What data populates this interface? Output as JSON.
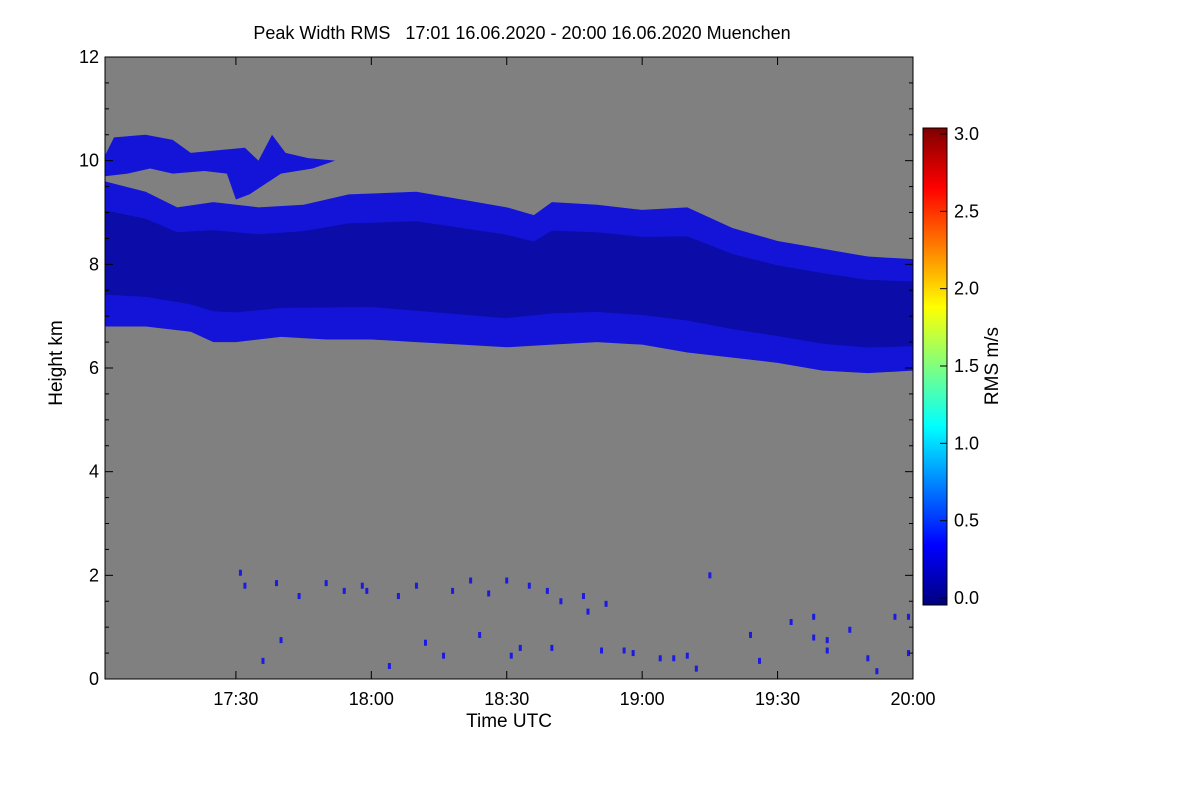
{
  "chart_data": {
    "type": "heatmap",
    "title": "Peak Width RMS   17:01 16.06.2020 - 20:00 16.06.2020 Muenchen",
    "xlabel": "Time UTC",
    "ylabel": "Height km",
    "x_range_minutes_utc": [
      1021,
      1200
    ],
    "xticks": [
      {
        "label": "17:30",
        "value": 1050
      },
      {
        "label": "18:00",
        "value": 1080
      },
      {
        "label": "18:30",
        "value": 1110
      },
      {
        "label": "19:00",
        "value": 1140
      },
      {
        "label": "19:30",
        "value": 1170
      },
      {
        "label": "20:00",
        "value": 1200
      }
    ],
    "ylim": [
      0,
      12
    ],
    "yticks": [
      "0",
      "2",
      "4",
      "6",
      "8",
      "10",
      "12"
    ],
    "background_color": "#808080",
    "colorbar": {
      "label": "RMS m/s",
      "range": [
        0.0,
        3.0
      ],
      "ticks": [
        "0.0",
        "0.5",
        "1.0",
        "1.5",
        "2.0",
        "2.5",
        "3.0"
      ],
      "colormap": "jet",
      "colors": [
        "#00007f",
        "#0000ff",
        "#007fff",
        "#00ffff",
        "#7fff7f",
        "#ffff00",
        "#ff7f00",
        "#ff0000",
        "#7f0000"
      ]
    },
    "layers": [
      {
        "name": "upper-cloud-band",
        "color": "#1414d8",
        "inner_color": "#0a0aa0",
        "top": [
          [
            1021,
            9.6
          ],
          [
            1030,
            9.4
          ],
          [
            1037,
            9.1
          ],
          [
            1045,
            9.2
          ],
          [
            1055,
            9.1
          ],
          [
            1065,
            9.15
          ],
          [
            1075,
            9.35
          ],
          [
            1090,
            9.4
          ],
          [
            1100,
            9.25
          ],
          [
            1110,
            9.1
          ],
          [
            1116,
            8.95
          ],
          [
            1120,
            9.2
          ],
          [
            1130,
            9.15
          ],
          [
            1140,
            9.05
          ],
          [
            1150,
            9.1
          ],
          [
            1160,
            8.7
          ],
          [
            1170,
            8.45
          ],
          [
            1180,
            8.3
          ],
          [
            1190,
            8.15
          ],
          [
            1200,
            8.1
          ]
        ],
        "bottom": [
          [
            1021,
            6.8
          ],
          [
            1030,
            6.8
          ],
          [
            1040,
            6.7
          ],
          [
            1045,
            6.5
          ],
          [
            1050,
            6.5
          ],
          [
            1060,
            6.6
          ],
          [
            1070,
            6.55
          ],
          [
            1080,
            6.55
          ],
          [
            1090,
            6.5
          ],
          [
            1100,
            6.45
          ],
          [
            1110,
            6.4
          ],
          [
            1120,
            6.45
          ],
          [
            1130,
            6.5
          ],
          [
            1140,
            6.45
          ],
          [
            1150,
            6.3
          ],
          [
            1160,
            6.2
          ],
          [
            1170,
            6.1
          ],
          [
            1180,
            5.95
          ],
          [
            1190,
            5.9
          ],
          [
            1200,
            5.95
          ]
        ]
      },
      {
        "name": "cirrus-tuft",
        "color": "#1414d8",
        "outline": [
          [
            1021,
            9.7
          ],
          [
            1021,
            10.1
          ],
          [
            1023,
            10.45
          ],
          [
            1030,
            10.5
          ],
          [
            1036,
            10.4
          ],
          [
            1040,
            10.15
          ],
          [
            1046,
            10.2
          ],
          [
            1052,
            10.25
          ],
          [
            1055,
            10.0
          ],
          [
            1058,
            10.5
          ],
          [
            1061,
            10.15
          ],
          [
            1066,
            10.05
          ],
          [
            1072,
            10.0
          ],
          [
            1067,
            9.85
          ],
          [
            1060,
            9.75
          ],
          [
            1053,
            9.35
          ],
          [
            1050,
            9.25
          ],
          [
            1048,
            9.75
          ],
          [
            1043,
            9.8
          ],
          [
            1036,
            9.75
          ],
          [
            1031,
            9.85
          ],
          [
            1026,
            9.75
          ]
        ]
      }
    ],
    "speckles": [
      {
        "x": 1051,
        "y": 2.05
      },
      {
        "x": 1052,
        "y": 1.8
      },
      {
        "x": 1059,
        "y": 1.85
      },
      {
        "x": 1064,
        "y": 1.6
      },
      {
        "x": 1070,
        "y": 1.85
      },
      {
        "x": 1074,
        "y": 1.7
      },
      {
        "x": 1078,
        "y": 1.8
      },
      {
        "x": 1079,
        "y": 1.7
      },
      {
        "x": 1086,
        "y": 1.6
      },
      {
        "x": 1090,
        "y": 1.8
      },
      {
        "x": 1110,
        "y": 1.9
      },
      {
        "x": 1115,
        "y": 1.8
      },
      {
        "x": 1119,
        "y": 1.7
      },
      {
        "x": 1127,
        "y": 1.6
      },
      {
        "x": 1120,
        "y": 0.6
      },
      {
        "x": 1113,
        "y": 0.6
      },
      {
        "x": 1111,
        "y": 0.45
      },
      {
        "x": 1131,
        "y": 0.55
      },
      {
        "x": 1136,
        "y": 0.55
      },
      {
        "x": 1147,
        "y": 0.4
      },
      {
        "x": 1150,
        "y": 0.45
      },
      {
        "x": 1152,
        "y": 0.2
      },
      {
        "x": 1164,
        "y": 0.85
      },
      {
        "x": 1173,
        "y": 1.1
      },
      {
        "x": 1178,
        "y": 1.2
      },
      {
        "x": 1178,
        "y": 0.8
      },
      {
        "x": 1181,
        "y": 0.75
      },
      {
        "x": 1186,
        "y": 0.95
      },
      {
        "x": 1190,
        "y": 0.4
      },
      {
        "x": 1192,
        "y": 0.15
      },
      {
        "x": 1196,
        "y": 1.2
      },
      {
        "x": 1199,
        "y": 1.2
      },
      {
        "x": 1199,
        "y": 0.5
      },
      {
        "x": 1138,
        "y": 0.5
      },
      {
        "x": 1155,
        "y": 2.0
      },
      {
        "x": 1128,
        "y": 1.3
      },
      {
        "x": 1166,
        "y": 0.35
      },
      {
        "x": 1092,
        "y": 0.7
      },
      {
        "x": 1096,
        "y": 0.45
      },
      {
        "x": 1104,
        "y": 0.85
      },
      {
        "x": 1060,
        "y": 0.75
      },
      {
        "x": 1084,
        "y": 0.25
      },
      {
        "x": 1102,
        "y": 1.9
      },
      {
        "x": 1122,
        "y": 1.5
      },
      {
        "x": 1132,
        "y": 1.45
      },
      {
        "x": 1144,
        "y": 0.4
      },
      {
        "x": 1056,
        "y": 0.35
      },
      {
        "x": 1098,
        "y": 1.7
      },
      {
        "x": 1106,
        "y": 1.65
      },
      {
        "x": 1181,
        "y": 0.55
      }
    ]
  }
}
